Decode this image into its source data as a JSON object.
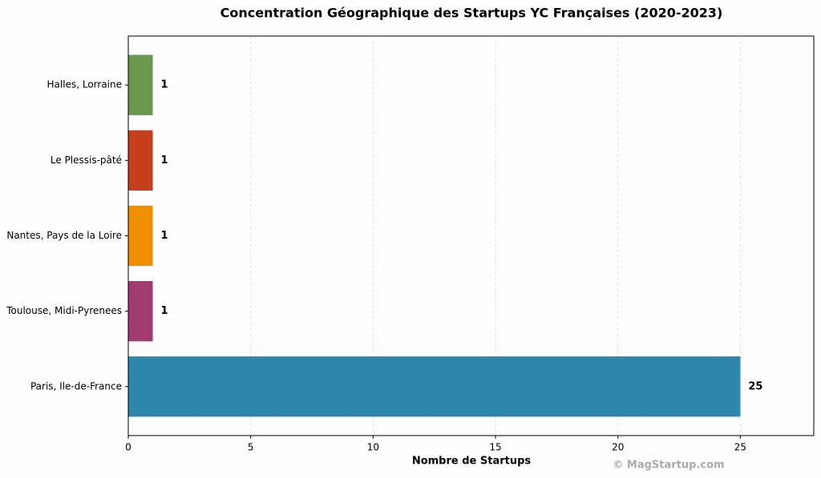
{
  "chart_data": {
    "type": "barh",
    "title": "Concentration Géographique des Startups YC Françaises (2020-2023)",
    "xlabel": "Nombre de Startups",
    "watermark": "© MagStartup.com",
    "categories": [
      "Paris, Ile-de-France",
      "Toulouse, Midi-Pyrenees",
      "Nantes, Pays de la Loire",
      "Le Plessis-pâté",
      "Halles, Lorraine"
    ],
    "values": [
      25,
      1,
      1,
      1,
      1
    ],
    "colors": [
      "#2e86ab",
      "#a23b72",
      "#f18f01",
      "#c73e1d",
      "#6a994e"
    ],
    "xlim": [
      0,
      28
    ],
    "xticks": [
      0,
      5,
      10,
      15,
      20,
      25
    ],
    "grid": true
  }
}
